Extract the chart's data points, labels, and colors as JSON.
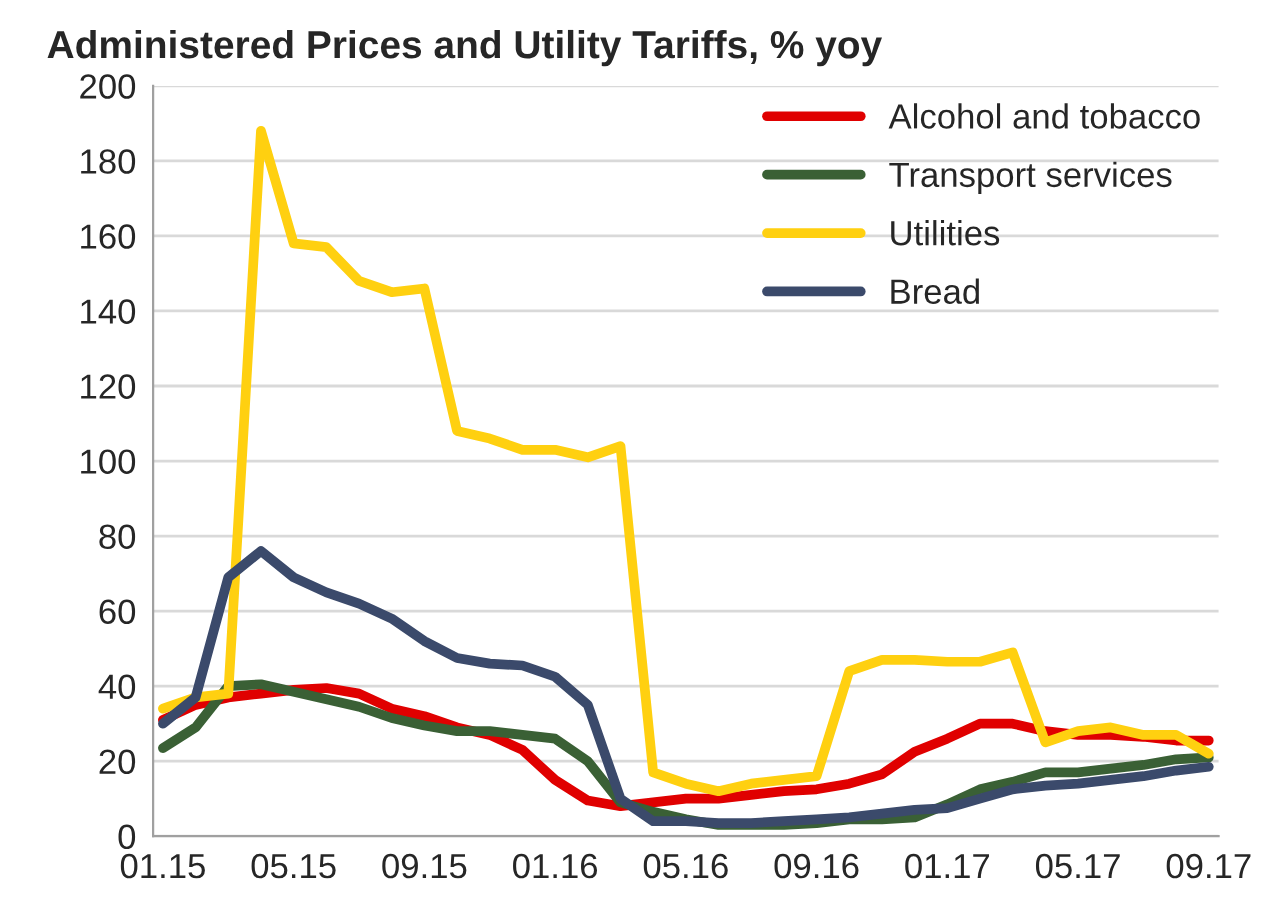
{
  "chart_data": {
    "type": "line",
    "title": "Administered Prices and Utility Tariffs, % yoy",
    "categories": [
      "01.15",
      null,
      null,
      null,
      "05.15",
      null,
      null,
      null,
      "09.15",
      null,
      null,
      null,
      "01.16",
      null,
      null,
      null,
      "05.16",
      null,
      null,
      null,
      "09.16",
      null,
      null,
      null,
      "01.17",
      null,
      null,
      null,
      "05.17",
      null,
      null,
      null,
      "09.17"
    ],
    "series": [
      {
        "name": "Alcohol and tobacco",
        "color": "#e00000",
        "values": [
          31,
          35,
          37,
          38,
          39,
          39.5,
          38,
          34,
          32,
          29,
          27,
          23,
          15,
          9.5,
          8,
          9,
          10,
          10,
          11,
          12,
          12.5,
          14,
          16.5,
          22.5,
          26,
          30,
          30,
          28,
          27,
          27,
          26.5,
          25.5,
          25.5
        ]
      },
      {
        "name": "Transport services",
        "color": "#3a6035",
        "values": [
          23.5,
          29,
          40,
          40.5,
          38.5,
          36.5,
          34.5,
          31.5,
          29.5,
          28,
          28,
          27,
          26,
          20,
          9,
          6.5,
          4.5,
          3,
          3,
          3,
          3.5,
          4.5,
          4.5,
          5,
          8.5,
          12.5,
          14.5,
          17,
          17,
          18,
          19,
          20.5,
          21
        ]
      },
      {
        "name": "Utilities",
        "color": "#ffd010",
        "values": [
          34,
          37,
          38,
          188,
          158,
          157,
          148,
          145,
          146,
          108,
          106,
          103,
          103,
          101,
          104,
          17,
          14,
          12,
          14,
          15,
          16,
          44,
          47,
          47,
          46.5,
          46.5,
          49,
          25,
          28,
          29,
          27,
          27,
          22
        ]
      },
      {
        "name": "Bread",
        "color": "#3b4a6b",
        "values": [
          30,
          37,
          69,
          76,
          69,
          65,
          62,
          58,
          52,
          47.5,
          46,
          45.5,
          42.5,
          35,
          10,
          4,
          4,
          3.5,
          3.5,
          4,
          4.5,
          5,
          6,
          7,
          7.5,
          10,
          12.5,
          13.5,
          14,
          15,
          16,
          17.5,
          18.5
        ]
      }
    ],
    "ylim": [
      0,
      200
    ],
    "yticks": [
      0,
      20,
      40,
      60,
      80,
      100,
      120,
      140,
      160,
      180,
      200
    ],
    "grid": "y",
    "legend": "top right",
    "marker": "none",
    "line_style": "solid"
  }
}
